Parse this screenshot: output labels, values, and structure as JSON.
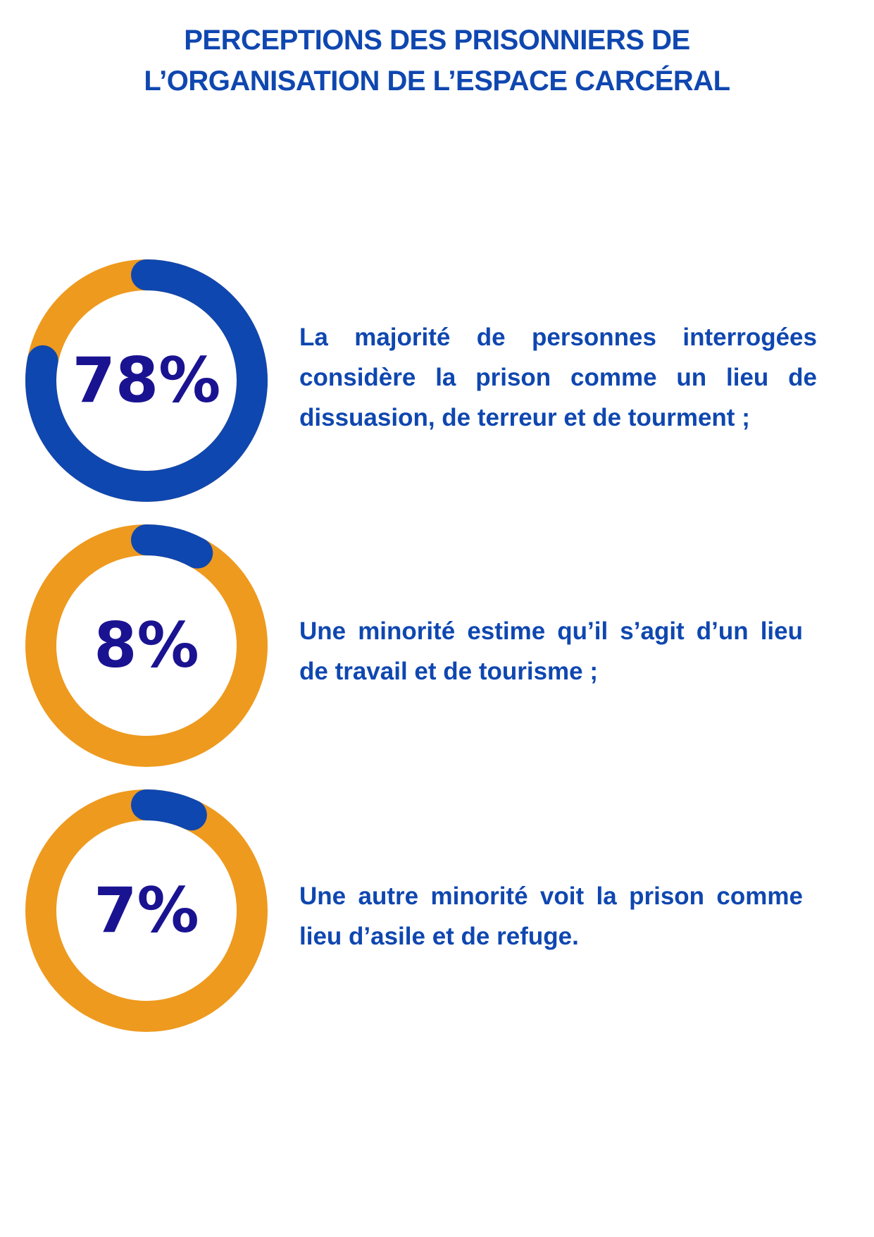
{
  "title": {
    "line1": "PERCEPTIONS DES PRISONNIERS DE",
    "line2": "L’ORGANISATION DE L’ESPACE CARCÉRAL"
  },
  "colors": {
    "blue": "#0f47b0",
    "orange": "#ee9a1f",
    "percent_text": "#1a1391"
  },
  "chart_data": {
    "type": "pie",
    "subtype": "donut",
    "items": [
      {
        "label": "78%",
        "value": 78,
        "text": "La majorité de personnes interrogées considère la prison comme un lieu de dissuasion, de terreur et de tourment ;"
      },
      {
        "label": "8%",
        "value": 8,
        "text": "Une minorité estime qu’il s’agit d’un lieu de travail et de tourisme ;"
      },
      {
        "label": "7%",
        "value": 7,
        "text": "Une autre minorité voit la prison comme lieu d’asile et de refuge."
      }
    ]
  }
}
